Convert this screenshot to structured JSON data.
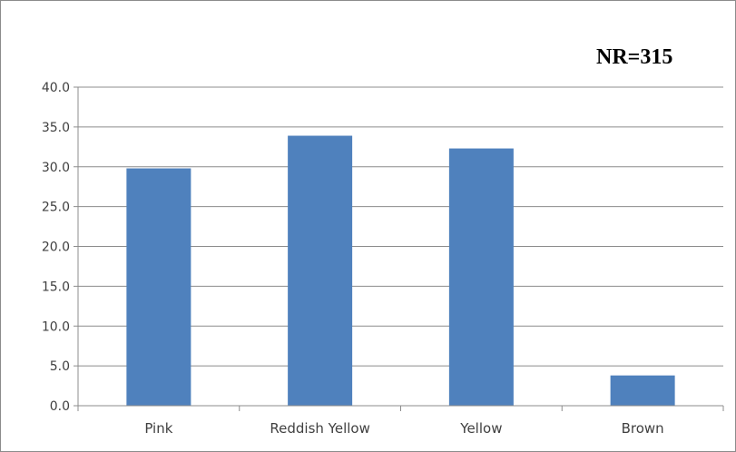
{
  "chart_data": {
    "type": "bar",
    "categories": [
      "Pink",
      "Reddish Yellow",
      "Yellow",
      "Brown"
    ],
    "values": [
      29.8,
      33.9,
      32.3,
      3.8
    ],
    "ylim": [
      0,
      40
    ],
    "yticks": [
      "0.0",
      "5.0",
      "10.0",
      "15.0",
      "20.0",
      "25.0",
      "30.0",
      "35.0",
      "40.0"
    ],
    "annotation": "NR=315",
    "grid": true,
    "legend": "none",
    "colors": {
      "bar": "#4f81bd",
      "grid": "#8c8c8c",
      "axis": "#8c8c8c"
    }
  }
}
